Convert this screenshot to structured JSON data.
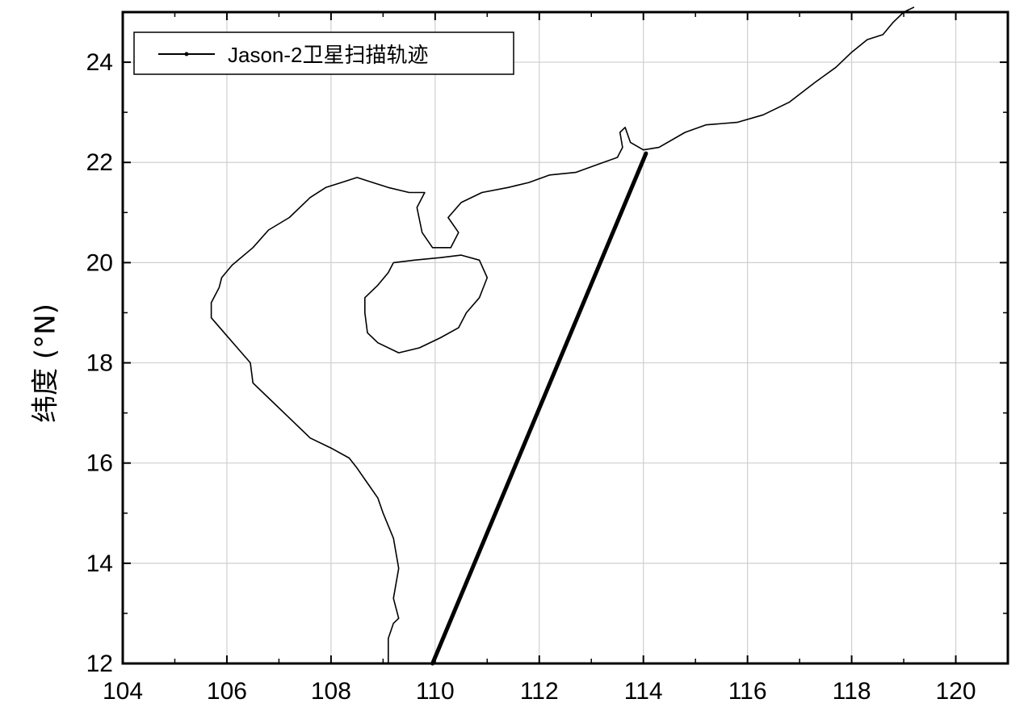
{
  "chart_data": {
    "type": "line",
    "xlim": [
      104,
      121
    ],
    "ylim": [
      12,
      25
    ],
    "x_ticks": [
      104,
      106,
      108,
      110,
      112,
      114,
      116,
      118,
      120
    ],
    "y_ticks": [
      12,
      14,
      16,
      18,
      20,
      22,
      24
    ],
    "xlabel": "",
    "ylabel": "纬度 (°N)",
    "grid": true,
    "legend": {
      "position": "top-left",
      "entries": [
        "Jason-2卫星扫描轨迹"
      ]
    },
    "series": [
      {
        "name": "Jason-2卫星扫描轨迹",
        "color": "#000000",
        "x": [
          109.95,
          114.05
        ],
        "y": [
          12.0,
          22.18
        ]
      }
    ],
    "coastline_mainland": [
      [
        109.1,
        12.0
      ],
      [
        109.1,
        12.5
      ],
      [
        109.2,
        12.8
      ],
      [
        109.3,
        12.9
      ],
      [
        109.2,
        13.3
      ],
      [
        109.3,
        13.9
      ],
      [
        109.2,
        14.5
      ],
      [
        109.0,
        15.0
      ],
      [
        108.9,
        15.3
      ],
      [
        108.7,
        15.6
      ],
      [
        108.5,
        15.9
      ],
      [
        108.35,
        16.1
      ],
      [
        108.0,
        16.3
      ],
      [
        107.6,
        16.5
      ],
      [
        107.2,
        16.9
      ],
      [
        106.8,
        17.3
      ],
      [
        106.5,
        17.6
      ],
      [
        106.45,
        18.0
      ],
      [
        106.2,
        18.3
      ],
      [
        105.95,
        18.6
      ],
      [
        105.7,
        18.9
      ],
      [
        105.7,
        19.2
      ],
      [
        105.85,
        19.5
      ],
      [
        105.9,
        19.7
      ],
      [
        106.1,
        19.95
      ],
      [
        106.5,
        20.3
      ],
      [
        106.8,
        20.65
      ],
      [
        107.2,
        20.9
      ],
      [
        107.6,
        21.3
      ],
      [
        107.9,
        21.5
      ],
      [
        108.2,
        21.6
      ],
      [
        108.5,
        21.7
      ],
      [
        108.8,
        21.6
      ],
      [
        109.1,
        21.5
      ],
      [
        109.5,
        21.4
      ],
      [
        109.8,
        21.4
      ],
      [
        109.65,
        21.1
      ],
      [
        109.75,
        20.6
      ],
      [
        109.95,
        20.3
      ],
      [
        110.3,
        20.3
      ],
      [
        110.45,
        20.6
      ],
      [
        110.25,
        20.9
      ],
      [
        110.5,
        21.2
      ],
      [
        110.9,
        21.4
      ],
      [
        111.4,
        21.5
      ],
      [
        111.8,
        21.6
      ],
      [
        112.2,
        21.75
      ],
      [
        112.7,
        21.8
      ],
      [
        113.1,
        21.95
      ],
      [
        113.5,
        22.1
      ],
      [
        113.6,
        22.3
      ],
      [
        113.55,
        22.6
      ],
      [
        113.65,
        22.7
      ],
      [
        113.75,
        22.4
      ],
      [
        114.0,
        22.25
      ],
      [
        114.3,
        22.3
      ],
      [
        114.8,
        22.6
      ],
      [
        115.2,
        22.75
      ],
      [
        115.8,
        22.8
      ],
      [
        116.3,
        22.95
      ],
      [
        116.8,
        23.2
      ],
      [
        117.3,
        23.6
      ],
      [
        117.7,
        23.9
      ],
      [
        118.0,
        24.2
      ],
      [
        118.3,
        24.45
      ],
      [
        118.6,
        24.55
      ],
      [
        118.8,
        24.8
      ],
      [
        119.0,
        25.0
      ],
      [
        119.2,
        25.1
      ]
    ],
    "coastline_hainan": [
      [
        109.2,
        20.0
      ],
      [
        109.6,
        20.05
      ],
      [
        110.1,
        20.1
      ],
      [
        110.5,
        20.15
      ],
      [
        110.85,
        20.05
      ],
      [
        111.0,
        19.7
      ],
      [
        110.85,
        19.3
      ],
      [
        110.6,
        19.0
      ],
      [
        110.45,
        18.7
      ],
      [
        110.1,
        18.5
      ],
      [
        109.7,
        18.3
      ],
      [
        109.3,
        18.2
      ],
      [
        108.9,
        18.4
      ],
      [
        108.7,
        18.6
      ],
      [
        108.65,
        19.0
      ],
      [
        108.65,
        19.3
      ],
      [
        108.9,
        19.55
      ],
      [
        109.1,
        19.8
      ],
      [
        109.2,
        20.0
      ]
    ]
  }
}
